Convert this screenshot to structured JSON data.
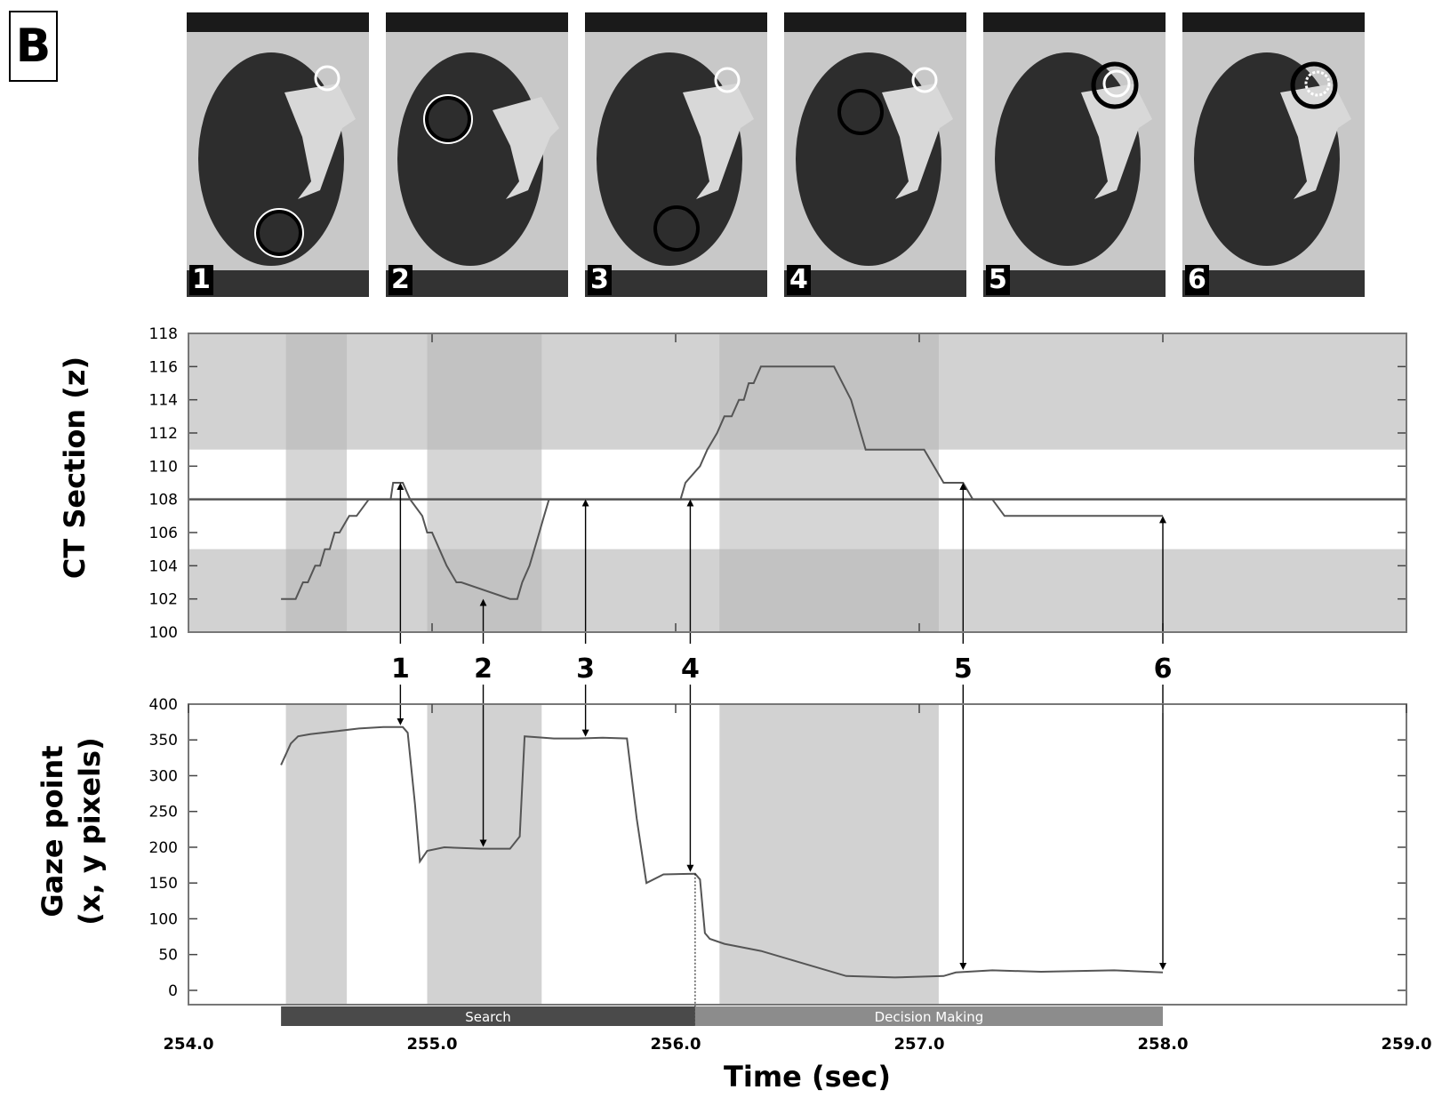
{
  "panel_label": "B",
  "thumbnails": [
    {
      "number": "1"
    },
    {
      "number": "2"
    },
    {
      "number": "3"
    },
    {
      "number": "4"
    },
    {
      "number": "5"
    },
    {
      "number": "6"
    }
  ],
  "colors": {
    "band_dark": "#b4b4b4",
    "band_light": "#d2d2d2",
    "band_pale": "#e6e6e6",
    "line": "#555555",
    "search_bar": "#4a4a4a",
    "decision_bar": "#8c8c8c"
  },
  "chart_data": [
    {
      "type": "line",
      "ylabel": "CT Section (z)",
      "xlim": [
        254.0,
        259.0
      ],
      "ylim": [
        100,
        118
      ],
      "y_ticks": [
        "100",
        "102",
        "104",
        "106",
        "108",
        "110",
        "112",
        "114",
        "116",
        "118"
      ],
      "reference_line_y": 108,
      "highlight_band_y": [
        105,
        111
      ],
      "shaded_x_intervals": [
        [
          254.4,
          254.65
        ],
        [
          254.98,
          255.45
        ],
        [
          256.18,
          257.08
        ]
      ],
      "x": [
        254.38,
        254.44,
        254.47,
        254.49,
        254.52,
        254.54,
        254.56,
        254.58,
        254.6,
        254.62,
        254.66,
        254.69,
        254.74,
        254.83,
        254.84,
        254.88,
        254.91,
        254.96,
        254.98,
        255.0,
        255.03,
        255.06,
        255.1,
        255.12,
        255.32,
        255.35,
        255.37,
        255.4,
        255.42,
        255.44,
        255.46,
        255.48,
        255.52,
        256.02,
        256.04,
        256.1,
        256.13,
        256.17,
        256.2,
        256.23,
        256.26,
        256.28,
        256.3,
        256.32,
        256.35,
        256.37,
        256.39,
        256.42,
        256.65,
        256.72,
        256.78,
        256.92,
        257.02,
        257.06,
        257.1,
        257.18,
        257.22,
        257.3,
        257.35,
        258.0
      ],
      "y": [
        102,
        102,
        103,
        103,
        104,
        104,
        105,
        105,
        106,
        106,
        107,
        107,
        108,
        108,
        109,
        109,
        108,
        107,
        106,
        106,
        105,
        104,
        103,
        103,
        102,
        102,
        103,
        104,
        105,
        106,
        107,
        108,
        108,
        108,
        109,
        110,
        111,
        112,
        113,
        113,
        114,
        114,
        115,
        115,
        116,
        116,
        116,
        116,
        116,
        114,
        111,
        111,
        111,
        110,
        109,
        109,
        108,
        108,
        107,
        107
      ],
      "annotations": [
        {
          "label": "1",
          "x": 254.87,
          "y": 109
        },
        {
          "label": "2",
          "x": 255.21,
          "y": 102
        },
        {
          "label": "3",
          "x": 255.63,
          "y": 108
        },
        {
          "label": "4",
          "x": 256.06,
          "y": 108
        },
        {
          "label": "5",
          "x": 257.18,
          "y": 109
        },
        {
          "label": "6",
          "x": 258.0,
          "y": 107
        }
      ]
    },
    {
      "type": "line",
      "ylabel": "Gaze point",
      "ylabel2": "(x, y pixels)",
      "xlabel": "Time (sec)",
      "xlim": [
        254.0,
        259.0
      ],
      "ylim": [
        -20,
        400
      ],
      "y_ticks": [
        "0",
        "50",
        "100",
        "150",
        "200",
        "250",
        "300",
        "350",
        "400"
      ],
      "x_ticks": [
        "254.0",
        "255.0",
        "256.0",
        "257.0",
        "258.0",
        "259.0"
      ],
      "shaded_x_intervals": [
        [
          254.4,
          254.65
        ],
        [
          254.98,
          255.45
        ],
        [
          256.18,
          257.08
        ]
      ],
      "x": [
        254.38,
        254.42,
        254.45,
        254.5,
        254.6,
        254.7,
        254.8,
        254.88,
        254.9,
        254.93,
        254.95,
        254.98,
        255.05,
        255.2,
        255.32,
        255.36,
        255.38,
        255.42,
        255.5,
        255.6,
        255.7,
        255.8,
        255.84,
        255.88,
        255.95,
        256.08,
        256.1,
        256.12,
        256.14,
        256.2,
        256.35,
        256.5,
        256.7,
        256.9,
        257.1,
        257.15,
        257.3,
        257.5,
        257.8,
        258.0
      ],
      "y": [
        315,
        345,
        355,
        358,
        362,
        366,
        368,
        368,
        360,
        260,
        180,
        195,
        200,
        198,
        198,
        215,
        355,
        354,
        352,
        352,
        353,
        352,
        240,
        150,
        162,
        163,
        155,
        80,
        72,
        65,
        55,
        40,
        20,
        18,
        20,
        25,
        28,
        26,
        28,
        25
      ],
      "annotations": [
        {
          "label": "1",
          "x": 254.87,
          "y": 368
        },
        {
          "label": "2",
          "x": 255.21,
          "y": 198
        },
        {
          "label": "3",
          "x": 255.63,
          "y": 352
        },
        {
          "label": "4",
          "x": 256.06,
          "y": 163
        },
        {
          "label": "5",
          "x": 257.18,
          "y": 26
        },
        {
          "label": "6",
          "x": 258.0,
          "y": 26
        }
      ],
      "phases": [
        {
          "label": "Search",
          "start": 254.38,
          "end": 256.08
        },
        {
          "label": "Decision Making",
          "start": 256.08,
          "end": 258.0
        }
      ]
    }
  ]
}
